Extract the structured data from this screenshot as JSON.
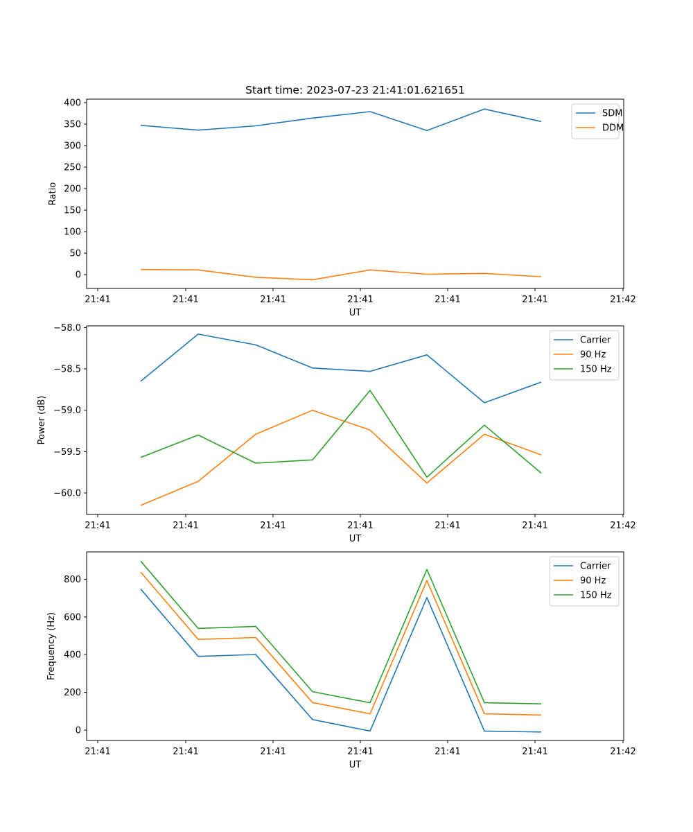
{
  "chart_data": [
    {
      "type": "line",
      "title": "Start time: 2023-07-23 21:41:01.621651",
      "xlabel": "UT",
      "ylabel": "Ratio",
      "x_tick_labels": [
        "21:41",
        "21:41",
        "21:41",
        "21:41",
        "21:41",
        "21:41",
        "21:42"
      ],
      "ylim": [
        -32,
        408
      ],
      "yticks": [
        0,
        50,
        100,
        150,
        200,
        250,
        300,
        350,
        400
      ],
      "legend": "top-right",
      "series": [
        {
          "name": "SDM",
          "color": "#1f77b4",
          "values": [
            347,
            336,
            346,
            364,
            379,
            335,
            385,
            356
          ]
        },
        {
          "name": "DDM",
          "color": "#ff7f0e",
          "values": [
            12,
            11,
            -6,
            -12,
            11,
            1,
            3,
            -5
          ]
        }
      ]
    },
    {
      "type": "line",
      "title": "",
      "xlabel": "UT",
      "ylabel": "Power (dB)",
      "x_tick_labels": [
        "21:41",
        "21:41",
        "21:41",
        "21:41",
        "21:41",
        "21:41",
        "21:42"
      ],
      "ylim": [
        -60.26,
        -57.98
      ],
      "yticks": [
        -58.0,
        -58.5,
        -59.0,
        -59.5,
        -60.0
      ],
      "ytick_labels": [
        "−58.0",
        "−58.5",
        "−59.0",
        "−59.5",
        "−60.0"
      ],
      "legend": "top-right",
      "series": [
        {
          "name": "Carrier",
          "color": "#1f77b4",
          "values": [
            -58.65,
            -58.08,
            -58.21,
            -58.49,
            -58.53,
            -58.33,
            -58.91,
            -58.66
          ]
        },
        {
          "name": "90 Hz",
          "color": "#ff7f0e",
          "values": [
            -60.15,
            -59.86,
            -59.29,
            -59.0,
            -59.24,
            -59.88,
            -59.29,
            -59.54
          ]
        },
        {
          "name": "150 Hz",
          "color": "#2ca02c",
          "values": [
            -59.57,
            -59.3,
            -59.64,
            -59.6,
            -58.76,
            -59.81,
            -59.18,
            -59.76
          ]
        }
      ]
    },
    {
      "type": "line",
      "title": "",
      "xlabel": "UT",
      "ylabel": "Frequency (Hz)",
      "x_tick_labels": [
        "21:41",
        "21:41",
        "21:41",
        "21:41",
        "21:41",
        "21:41",
        "21:42"
      ],
      "ylim": [
        -55,
        945
      ],
      "yticks": [
        0,
        200,
        400,
        600,
        800
      ],
      "legend": "top-right",
      "series": [
        {
          "name": "Carrier",
          "color": "#1f77b4",
          "values": [
            748,
            391,
            401,
            56,
            -5,
            703,
            -5,
            -10
          ]
        },
        {
          "name": "90 Hz",
          "color": "#ff7f0e",
          "values": [
            838,
            481,
            491,
            146,
            86,
            793,
            86,
            80
          ]
        },
        {
          "name": "150 Hz",
          "color": "#2ca02c",
          "values": [
            896,
            539,
            550,
            204,
            145,
            852,
            145,
            139
          ]
        }
      ]
    }
  ]
}
